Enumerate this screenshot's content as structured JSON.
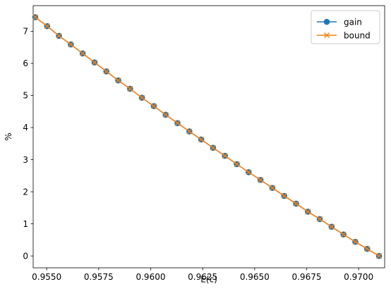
{
  "chart_data": {
    "type": "line",
    "xlabel": "E(c)",
    "ylabel": "%",
    "xlim": [
      0.95435,
      0.97125
    ],
    "ylim": [
      -0.37,
      7.8
    ],
    "xticks": [
      "0.9550",
      "0.9575",
      "0.9600",
      "0.9625",
      "0.9650",
      "0.9675",
      "0.9700"
    ],
    "xtick_values": [
      0.955,
      0.9575,
      0.96,
      0.9625,
      0.965,
      0.9675,
      0.97
    ],
    "yticks": [
      "0",
      "1",
      "2",
      "3",
      "4",
      "5",
      "6",
      "7"
    ],
    "ytick_values": [
      0,
      1,
      2,
      3,
      4,
      5,
      6,
      7
    ],
    "grid": false,
    "legend_position": "top-right",
    "x": [
      0.95445,
      0.95502,
      0.95559,
      0.95616,
      0.95673,
      0.9573,
      0.95787,
      0.95844,
      0.95901,
      0.95958,
      0.96015,
      0.96072,
      0.96129,
      0.96186,
      0.96243,
      0.963,
      0.96357,
      0.96414,
      0.96471,
      0.96528,
      0.96585,
      0.96642,
      0.96699,
      0.96756,
      0.96813,
      0.9687,
      0.96927,
      0.96984,
      0.97041,
      0.97098
    ],
    "series": [
      {
        "name": "gain",
        "color": "#1f77b4",
        "marker": "circle",
        "values": [
          7.44,
          7.16,
          6.86,
          6.59,
          6.31,
          6.03,
          5.75,
          5.47,
          5.21,
          4.93,
          4.67,
          4.4,
          4.14,
          3.88,
          3.63,
          3.37,
          3.12,
          2.86,
          2.61,
          2.37,
          2.12,
          1.87,
          1.63,
          1.38,
          1.15,
          0.91,
          0.67,
          0.44,
          0.22,
          0.0
        ]
      },
      {
        "name": "bound",
        "color": "#ff7f0e",
        "marker": "x",
        "values": [
          7.44,
          7.16,
          6.86,
          6.59,
          6.31,
          6.03,
          5.75,
          5.47,
          5.21,
          4.93,
          4.67,
          4.4,
          4.14,
          3.88,
          3.63,
          3.37,
          3.12,
          2.86,
          2.61,
          2.37,
          2.12,
          1.87,
          1.63,
          1.38,
          1.15,
          0.91,
          0.67,
          0.44,
          0.22,
          0.0
        ]
      }
    ]
  }
}
